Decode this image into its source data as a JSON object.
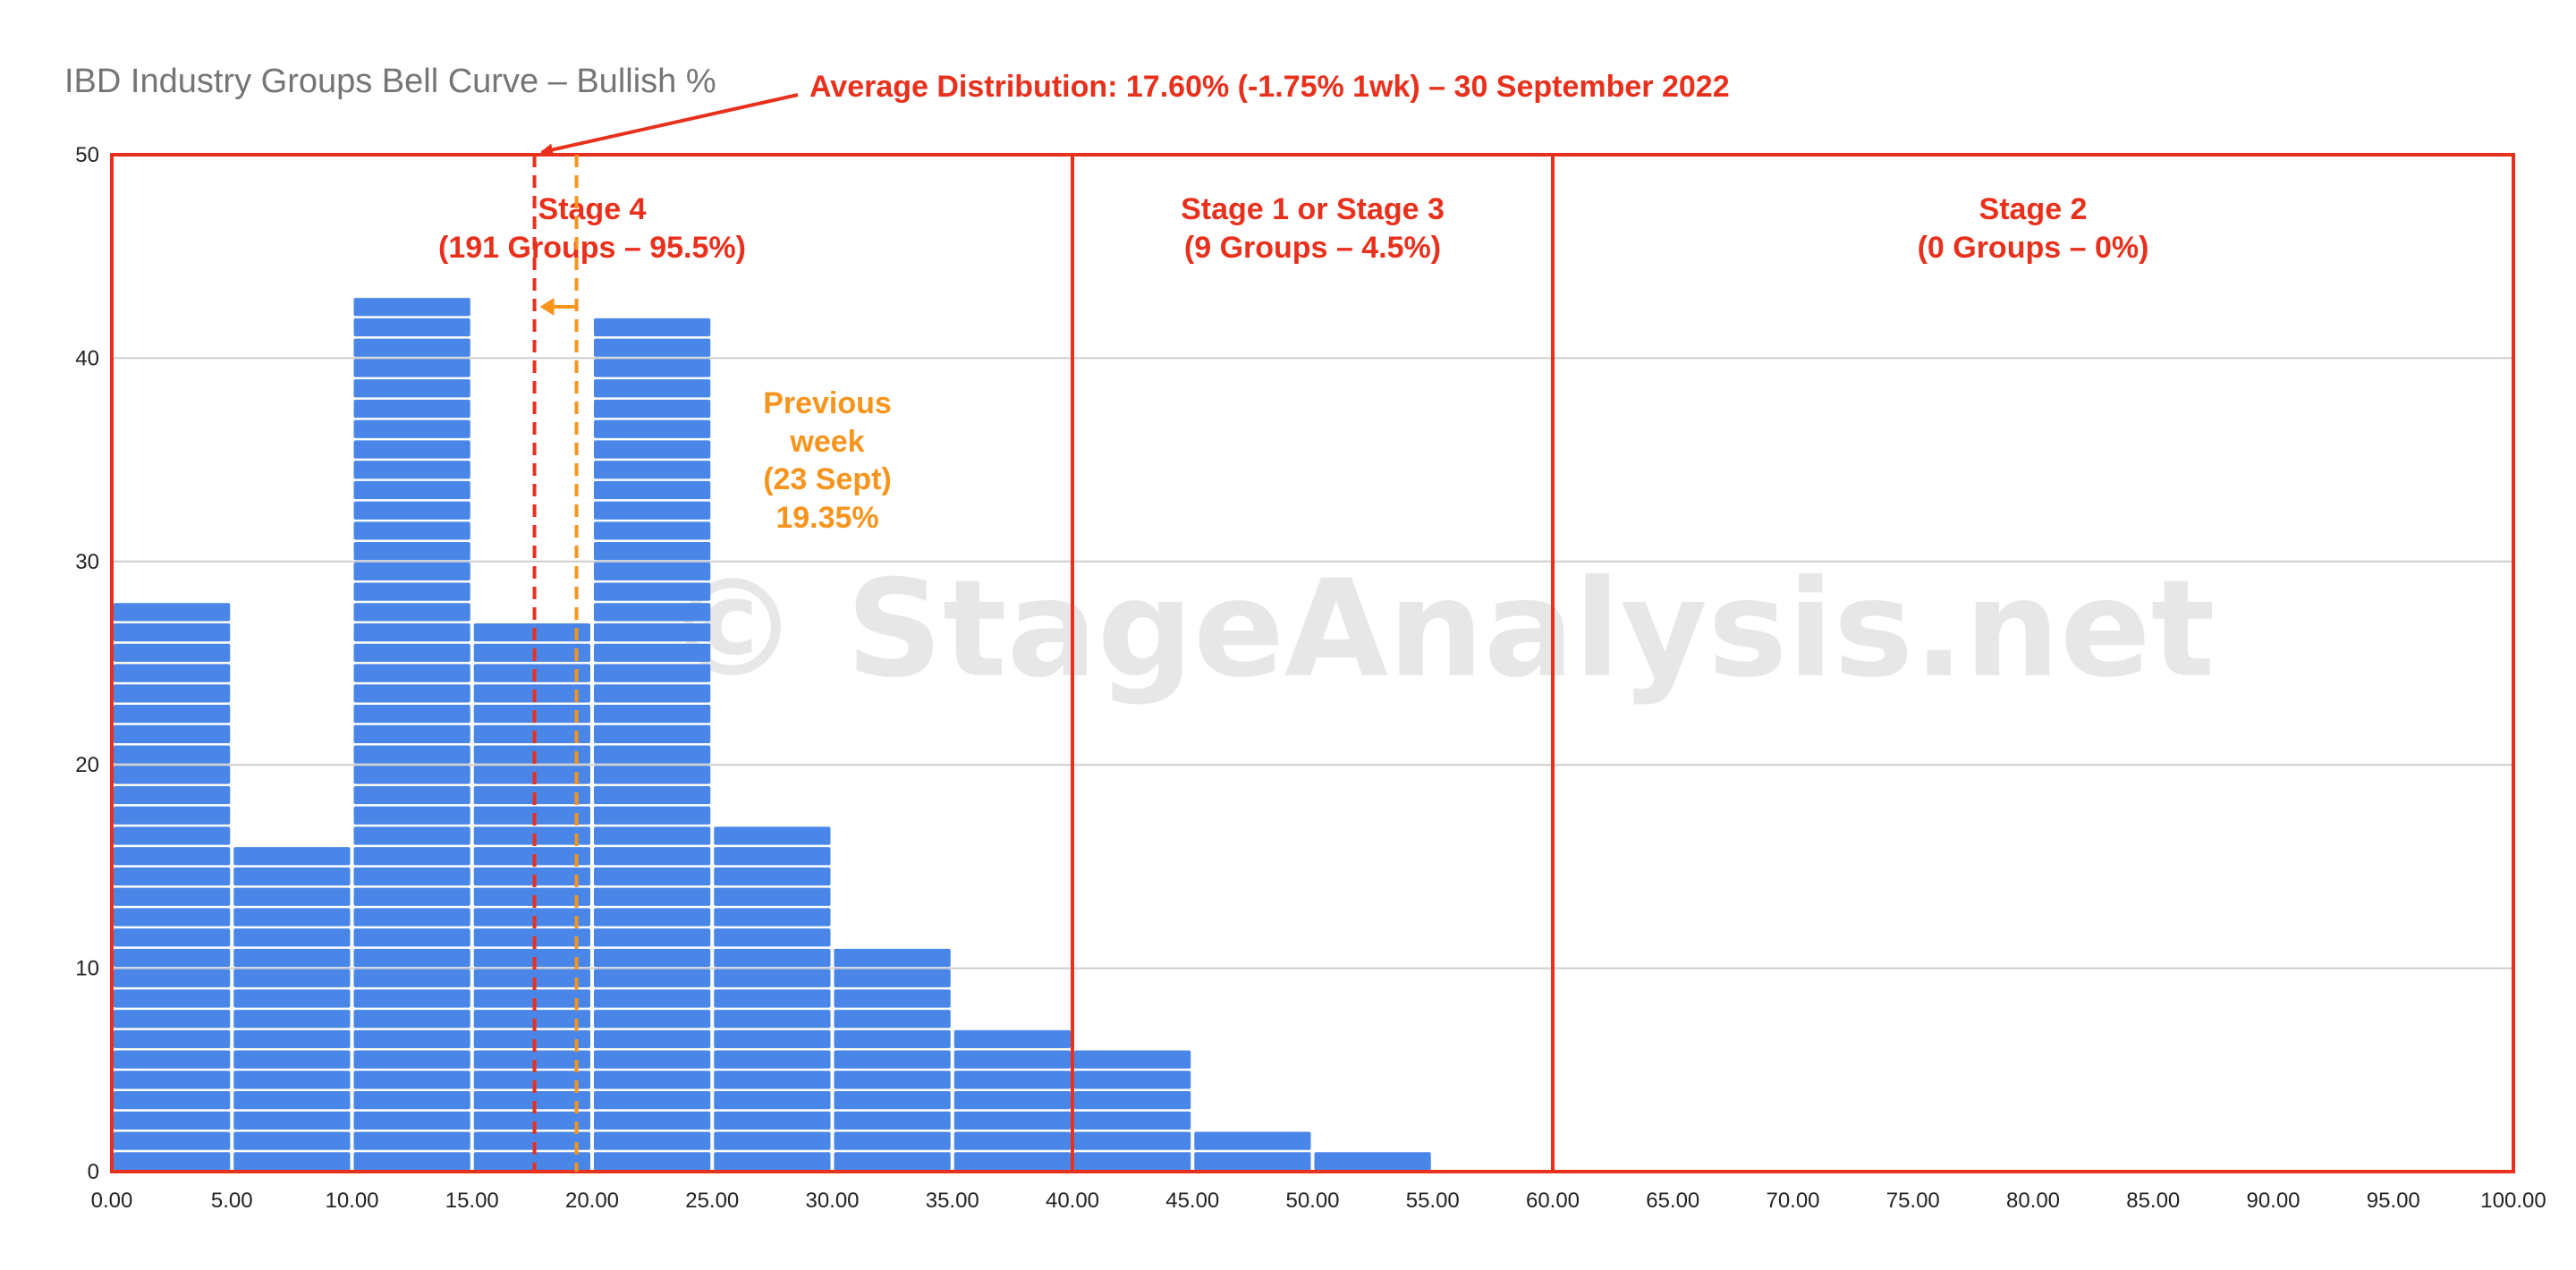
{
  "chart_data": {
    "type": "bar",
    "title": "IBD Industry Groups Bell Curve – Bullish %",
    "x_ticks": [
      "0.00",
      "5.00",
      "10.00",
      "15.00",
      "20.00",
      "25.00",
      "30.00",
      "35.00",
      "40.00",
      "45.00",
      "50.00",
      "55.00",
      "60.00",
      "65.00",
      "70.00",
      "75.00",
      "80.00",
      "85.00",
      "90.00",
      "95.00",
      "100.00"
    ],
    "y_ticks": [
      "0",
      "10",
      "20",
      "30",
      "40",
      "50"
    ],
    "xlim": [
      0,
      100
    ],
    "ylim": [
      0,
      50
    ],
    "bin_width": 5,
    "bins": [
      {
        "x0": 0,
        "x1": 5,
        "value": 28
      },
      {
        "x0": 5,
        "x1": 10,
        "value": 16
      },
      {
        "x0": 10,
        "x1": 15,
        "value": 43
      },
      {
        "x0": 15,
        "x1": 20,
        "value": 27
      },
      {
        "x0": 20,
        "x1": 25,
        "value": 42
      },
      {
        "x0": 25,
        "x1": 30,
        "value": 17
      },
      {
        "x0": 30,
        "x1": 35,
        "value": 11
      },
      {
        "x0": 35,
        "x1": 40,
        "value": 7
      },
      {
        "x0": 40,
        "x1": 45,
        "value": 6
      },
      {
        "x0": 45,
        "x1": 50,
        "value": 2
      },
      {
        "x0": 50,
        "x1": 55,
        "value": 1
      }
    ],
    "grid": true,
    "colors": {
      "bar": "#4a86e8",
      "stage_box": "#e8301c",
      "current_line": "#e8301c",
      "previous_line": "#f7941d",
      "grid": "#cccccc",
      "title": "#757575"
    },
    "current_average": 17.6,
    "previous_average": 19.35,
    "stages": [
      {
        "x0": 0,
        "x1": 40,
        "line1": "Stage 4",
        "line2": "(191 Groups – 95.5%)"
      },
      {
        "x0": 40,
        "x1": 60,
        "line1": "Stage 1 or Stage 3",
        "line2": "(9 Groups – 4.5%)"
      },
      {
        "x0": 60,
        "x1": 100,
        "line1": "Stage 2",
        "line2": "(0 Groups – 0%)"
      }
    ],
    "annotations": {
      "average_distribution": "Average Distribution: 17.60% (-1.75% 1wk) – 30 September 2022",
      "previous_week": [
        "Previous",
        "week",
        "(23 Sept)",
        "19.35%"
      ]
    },
    "watermark": "© StageAnalysis.net"
  }
}
